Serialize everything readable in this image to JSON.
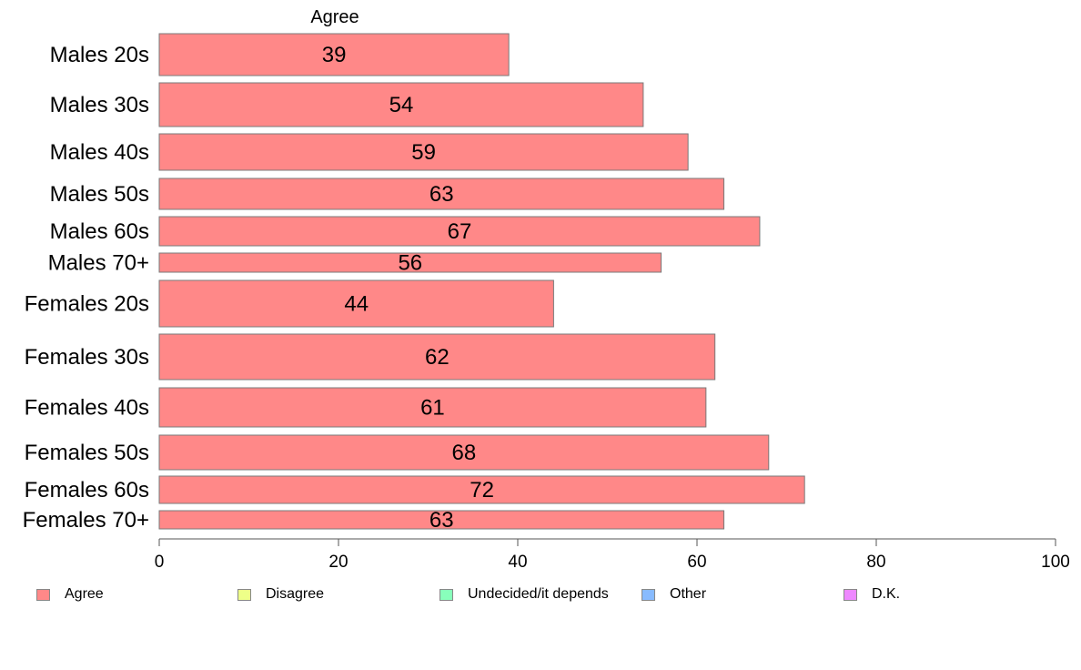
{
  "chart_data": {
    "type": "bar",
    "orientation": "horizontal",
    "stacked": true,
    "top_label": "Agree",
    "categories": [
      "Males 20s",
      "Males 30s",
      "Males 40s",
      "Males 50s",
      "Males 60s",
      "Males 70+",
      "Females 20s",
      "Females 30s",
      "Females 40s",
      "Females 50s",
      "Females 60s",
      "Females 70+"
    ],
    "series": [
      {
        "name": "Agree",
        "color": "#ff8888",
        "values": [
          39,
          54,
          59,
          63,
          67,
          56,
          44,
          62,
          61,
          68,
          72,
          63
        ]
      }
    ],
    "xlim": [
      0,
      100
    ],
    "xticks": [
      0,
      20,
      40,
      60,
      80,
      100
    ],
    "grid": false,
    "legend": {
      "placement": "bottom",
      "items": [
        {
          "label": "Agree",
          "color": "#ff8888"
        },
        {
          "label": "Disagree",
          "color": "#eeff88"
        },
        {
          "label": "Undecided/it depends",
          "color": "#88ffbb"
        },
        {
          "label": "Other",
          "color": "#88bbff"
        },
        {
          "label": "D.K.",
          "color": "#ee88ff"
        }
      ]
    }
  }
}
